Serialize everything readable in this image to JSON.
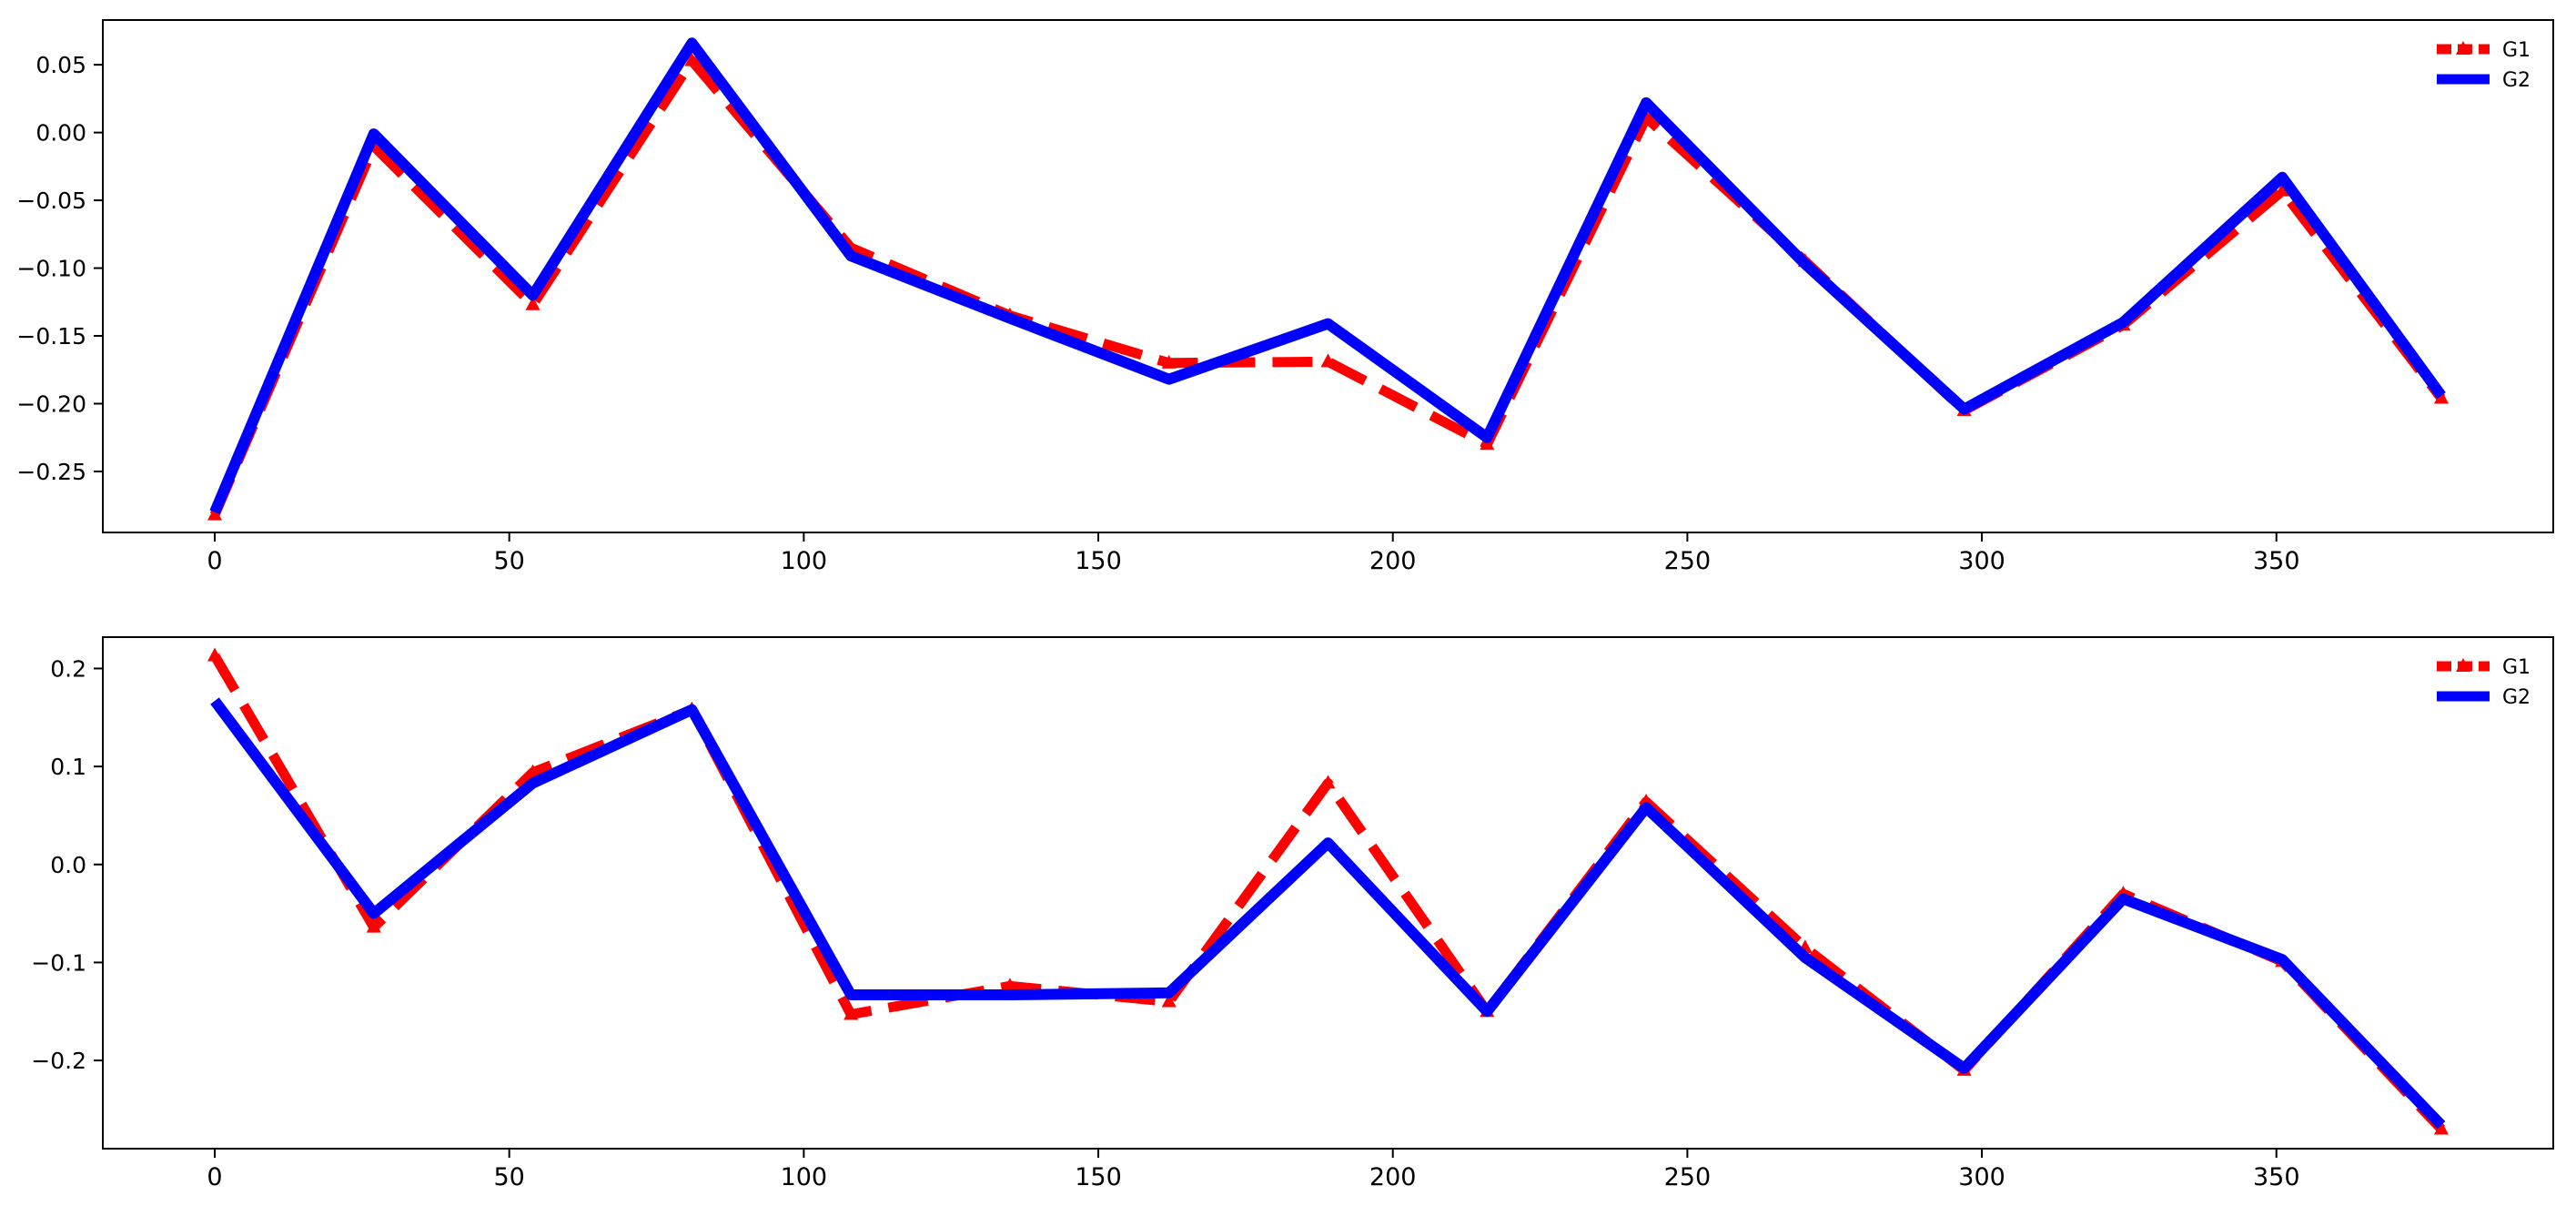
{
  "chart_data": [
    {
      "type": "line",
      "title": "",
      "xlabel": "",
      "ylabel": "",
      "xlim": [
        -19,
        397
      ],
      "ylim": [
        -0.295,
        0.083
      ],
      "x_ticks": [
        0,
        50,
        100,
        150,
        200,
        250,
        300,
        350
      ],
      "y_ticks": [
        0.05,
        0.0,
        -0.05,
        -0.1,
        -0.15,
        -0.2,
        -0.25
      ],
      "y_tick_decimals": 2,
      "grid": false,
      "legend_position": "top-right",
      "x": [
        0,
        27,
        54,
        81,
        108,
        135,
        162,
        189,
        216,
        243,
        270,
        297,
        324,
        351,
        378
      ],
      "series": [
        {
          "name": "G1",
          "color": "#ff0000",
          "line_style": "dashed",
          "marker": "triangle-up",
          "values": [
            -0.282,
            -0.01,
            -0.127,
            0.053,
            -0.085,
            -0.135,
            -0.17,
            -0.169,
            -0.23,
            0.011,
            -0.095,
            -0.205,
            -0.142,
            -0.043,
            -0.196
          ]
        },
        {
          "name": "G2",
          "color": "#0000ff",
          "line_style": "solid",
          "marker": "none",
          "values": [
            -0.28,
            -0.001,
            -0.12,
            0.066,
            -0.091,
            -0.137,
            -0.182,
            -0.141,
            -0.225,
            0.022,
            -0.097,
            -0.204,
            -0.14,
            -0.033,
            -0.194
          ]
        }
      ]
    },
    {
      "type": "line",
      "title": "",
      "xlabel": "",
      "ylabel": "",
      "xlim": [
        -19,
        397
      ],
      "ylim": [
        -0.29,
        0.232
      ],
      "x_ticks": [
        0,
        50,
        100,
        150,
        200,
        250,
        300,
        350
      ],
      "y_ticks": [
        0.2,
        0.1,
        0.0,
        -0.1,
        -0.2
      ],
      "y_tick_decimals": 1,
      "grid": false,
      "legend_position": "top-right",
      "x": [
        0,
        27,
        54,
        81,
        108,
        135,
        162,
        189,
        216,
        243,
        270,
        297,
        324,
        351,
        378
      ],
      "series": [
        {
          "name": "G1",
          "color": "#ff0000",
          "line_style": "dashed",
          "marker": "triangle-up",
          "values": [
            0.213,
            -0.064,
            0.094,
            0.158,
            -0.153,
            -0.124,
            -0.14,
            0.083,
            -0.15,
            0.064,
            -0.085,
            -0.21,
            -0.03,
            -0.099,
            -0.27
          ]
        },
        {
          "name": "G2",
          "color": "#0000ff",
          "line_style": "solid",
          "marker": "none",
          "values": [
            0.167,
            -0.05,
            0.083,
            0.158,
            -0.133,
            -0.133,
            -0.131,
            0.022,
            -0.15,
            0.058,
            -0.095,
            -0.208,
            -0.035,
            -0.097,
            -0.266
          ]
        }
      ]
    }
  ]
}
